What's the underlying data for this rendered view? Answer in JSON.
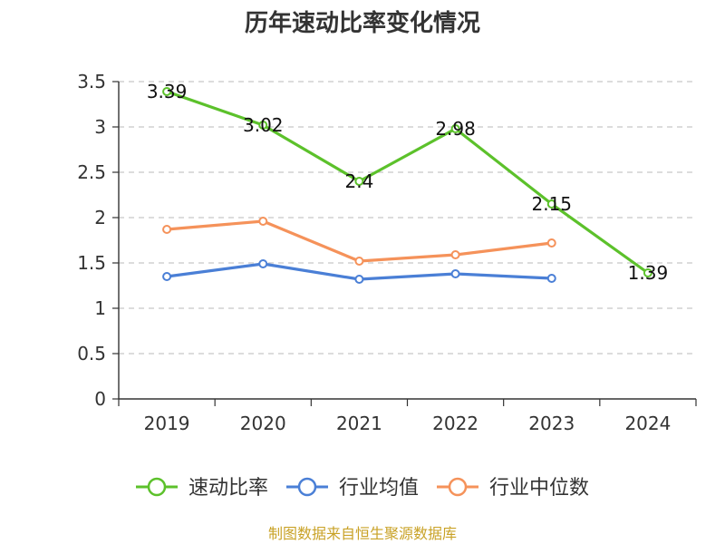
{
  "chart_data": {
    "type": "line",
    "title": "历年速动比率变化情况",
    "xlabel": "",
    "ylabel": "",
    "categories": [
      "2019",
      "2020",
      "2021",
      "2022",
      "2023",
      "2024"
    ],
    "ylim": [
      0,
      3.5
    ],
    "yticks": [
      0,
      0.5,
      1,
      1.5,
      2,
      2.5,
      3,
      3.5
    ],
    "ytick_labels": [
      "0",
      "0.5",
      "1",
      "1.5",
      "2",
      "2.5",
      "3",
      "3.5"
    ],
    "grid": true,
    "legend_position": "bottom",
    "series": [
      {
        "name": "速动比率",
        "color": "#5cc12b",
        "values": [
          3.39,
          3.02,
          2.4,
          2.98,
          2.15,
          1.39
        ],
        "labels": [
          "3.39",
          "3.02",
          "2.4",
          "2.98",
          "2.15",
          "1.39"
        ]
      },
      {
        "name": "行业均值",
        "color": "#4a7fd6",
        "values": [
          1.35,
          1.49,
          1.32,
          1.38,
          1.33,
          null
        ]
      },
      {
        "name": "行业中位数",
        "color": "#f5925a",
        "values": [
          1.87,
          1.96,
          1.52,
          1.59,
          1.72,
          null
        ]
      }
    ]
  },
  "source": "制图数据来自恒生聚源数据库"
}
